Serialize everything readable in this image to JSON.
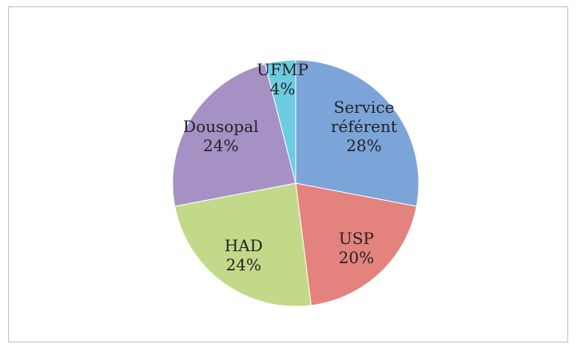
{
  "chart_data": {
    "type": "pie",
    "categories": [
      "Service référent",
      "USP",
      "HAD",
      "Dousopal",
      "UFMP"
    ],
    "values": [
      28,
      20,
      24,
      24,
      4
    ],
    "value_labels": [
      "28%",
      "20%",
      "24%",
      "24%",
      "4%"
    ],
    "colors": [
      "#7ba4d9",
      "#e4827e",
      "#c3d98a",
      "#a591c4",
      "#6ccbe0"
    ]
  }
}
